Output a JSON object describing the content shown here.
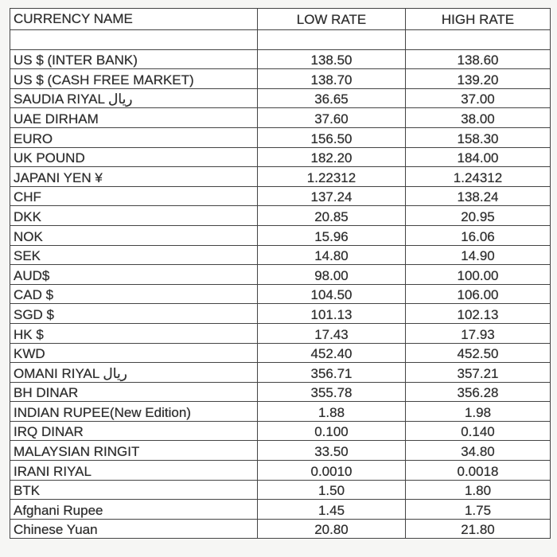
{
  "headers": {
    "name": "CURRENCY NAME",
    "low": "LOW RATE",
    "high": "HIGH RATE"
  },
  "rows": [
    {
      "name": "US $ (INTER BANK)",
      "low": "138.50",
      "high": "138.60"
    },
    {
      "name": "US $ (CASH FREE MARKET)",
      "low": "138.70",
      "high": "139.20"
    },
    {
      "name": "SAUDIA RIYAL ریال",
      "low": "36.65",
      "high": "37.00"
    },
    {
      "name": "UAE DIRHAM",
      "low": "37.60",
      "high": "38.00"
    },
    {
      "name": "EURO",
      "low": "156.50",
      "high": "158.30"
    },
    {
      "name": "UK POUND",
      "low": "182.20",
      "high": "184.00"
    },
    {
      "name": "JAPANI YEN ¥",
      "low": "1.22312",
      "high": "1.24312"
    },
    {
      "name": "CHF",
      "low": "137.24",
      "high": "138.24"
    },
    {
      "name": "DKK",
      "low": "20.85",
      "high": "20.95"
    },
    {
      "name": "NOK",
      "low": "15.96",
      "high": "16.06"
    },
    {
      "name": "SEK",
      "low": "14.80",
      "high": "14.90"
    },
    {
      "name": "AUD$",
      "low": "98.00",
      "high": "100.00"
    },
    {
      "name": "CAD $",
      "low": "104.50",
      "high": "106.00"
    },
    {
      "name": "SGD $",
      "low": "101.13",
      "high": "102.13"
    },
    {
      "name": "HK $",
      "low": "17.43",
      "high": "17.93"
    },
    {
      "name": "KWD",
      "low": "452.40",
      "high": "452.50"
    },
    {
      "name": "OMANI RIYAL ریال",
      "low": "356.71",
      "high": "357.21"
    },
    {
      "name": "BH DINAR",
      "low": "355.78",
      "high": "356.28"
    },
    {
      "name": "INDIAN RUPEE(New Edition)",
      "low": "1.88",
      "high": "1.98"
    },
    {
      "name": "IRQ DINAR",
      "low": "0.100",
      "high": "0.140"
    },
    {
      "name": "MALAYSIAN RINGIT",
      "low": "33.50",
      "high": "34.80"
    },
    {
      "name": "IRANI RIYAL",
      "low": "0.0010",
      "high": "0.0018"
    },
    {
      "name": "BTK",
      "low": "1.50",
      "high": "1.80"
    },
    {
      "name": "Afghani Rupee",
      "low": "1.45",
      "high": "1.75"
    },
    {
      "name": "Chinese Yuan",
      "low": "20.80",
      "high": "21.80"
    }
  ]
}
